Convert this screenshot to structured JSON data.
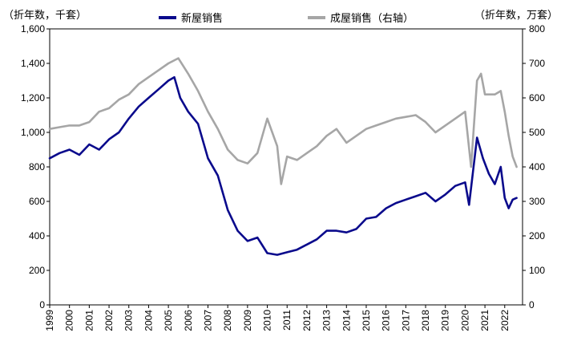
{
  "chart_data": {
    "type": "line",
    "left_axis_label": "（折年数，千套）",
    "right_axis_label": "（折年数，万套）",
    "legend": [
      {
        "name": "新屋销售",
        "color": "#0a0a8c"
      },
      {
        "name": "成屋销售（右轴）",
        "color": "#a6a6a6"
      }
    ],
    "x_ticks": [
      "1999",
      "2000",
      "2001",
      "2002",
      "2003",
      "2004",
      "2005",
      "2006",
      "2007",
      "2008",
      "2009",
      "2010",
      "2011",
      "2012",
      "2013",
      "2014",
      "2015",
      "2016",
      "2017",
      "2018",
      "2019",
      "2020",
      "2021",
      "2022"
    ],
    "y_left": {
      "min": 0,
      "max": 1600,
      "ticks": [
        "0",
        "200",
        "400",
        "600",
        "800",
        "1,000",
        "1,200",
        "1,400",
        "1,600"
      ]
    },
    "y_right": {
      "min": 0,
      "max": 800,
      "ticks": [
        "0",
        "100",
        "200",
        "300",
        "400",
        "500",
        "600",
        "700",
        "800"
      ]
    },
    "series": [
      {
        "name": "新屋销售",
        "axis": "left",
        "color": "#0a0a8c",
        "points": [
          [
            1999.0,
            850
          ],
          [
            1999.5,
            880
          ],
          [
            2000.0,
            900
          ],
          [
            2000.5,
            870
          ],
          [
            2001.0,
            930
          ],
          [
            2001.5,
            900
          ],
          [
            2002.0,
            960
          ],
          [
            2002.5,
            1000
          ],
          [
            2003.0,
            1080
          ],
          [
            2003.5,
            1150
          ],
          [
            2004.0,
            1200
          ],
          [
            2004.5,
            1250
          ],
          [
            2005.0,
            1300
          ],
          [
            2005.3,
            1320
          ],
          [
            2005.6,
            1200
          ],
          [
            2006.0,
            1120
          ],
          [
            2006.5,
            1050
          ],
          [
            2007.0,
            850
          ],
          [
            2007.5,
            750
          ],
          [
            2008.0,
            550
          ],
          [
            2008.5,
            430
          ],
          [
            2009.0,
            370
          ],
          [
            2009.5,
            390
          ],
          [
            2010.0,
            300
          ],
          [
            2010.5,
            290
          ],
          [
            2011.0,
            305
          ],
          [
            2011.5,
            320
          ],
          [
            2012.0,
            350
          ],
          [
            2012.5,
            380
          ],
          [
            2013.0,
            430
          ],
          [
            2013.5,
            430
          ],
          [
            2014.0,
            420
          ],
          [
            2014.5,
            440
          ],
          [
            2015.0,
            500
          ],
          [
            2015.5,
            510
          ],
          [
            2016.0,
            560
          ],
          [
            2016.5,
            590
          ],
          [
            2017.0,
            610
          ],
          [
            2017.5,
            630
          ],
          [
            2018.0,
            650
          ],
          [
            2018.5,
            600
          ],
          [
            2019.0,
            640
          ],
          [
            2019.5,
            690
          ],
          [
            2020.0,
            710
          ],
          [
            2020.2,
            580
          ],
          [
            2020.6,
            970
          ],
          [
            2020.9,
            850
          ],
          [
            2021.2,
            760
          ],
          [
            2021.5,
            700
          ],
          [
            2021.8,
            800
          ],
          [
            2022.0,
            620
          ],
          [
            2022.2,
            560
          ],
          [
            2022.4,
            610
          ],
          [
            2022.6,
            620
          ]
        ]
      },
      {
        "name": "成屋销售（右轴）",
        "axis": "right",
        "color": "#a6a6a6",
        "points": [
          [
            1999.0,
            510
          ],
          [
            1999.5,
            515
          ],
          [
            2000.0,
            520
          ],
          [
            2000.5,
            520
          ],
          [
            2001.0,
            530
          ],
          [
            2001.5,
            560
          ],
          [
            2002.0,
            570
          ],
          [
            2002.5,
            595
          ],
          [
            2003.0,
            610
          ],
          [
            2003.5,
            640
          ],
          [
            2004.0,
            660
          ],
          [
            2004.5,
            680
          ],
          [
            2005.0,
            700
          ],
          [
            2005.5,
            715
          ],
          [
            2006.0,
            670
          ],
          [
            2006.5,
            620
          ],
          [
            2007.0,
            560
          ],
          [
            2007.5,
            510
          ],
          [
            2008.0,
            450
          ],
          [
            2008.5,
            420
          ],
          [
            2009.0,
            410
          ],
          [
            2009.5,
            440
          ],
          [
            2010.0,
            540
          ],
          [
            2010.5,
            460
          ],
          [
            2010.7,
            350
          ],
          [
            2011.0,
            430
          ],
          [
            2011.5,
            420
          ],
          [
            2012.0,
            440
          ],
          [
            2012.5,
            460
          ],
          [
            2013.0,
            490
          ],
          [
            2013.5,
            510
          ],
          [
            2014.0,
            470
          ],
          [
            2014.5,
            490
          ],
          [
            2015.0,
            510
          ],
          [
            2015.5,
            520
          ],
          [
            2016.0,
            530
          ],
          [
            2016.5,
            540
          ],
          [
            2017.0,
            545
          ],
          [
            2017.5,
            550
          ],
          [
            2018.0,
            530
          ],
          [
            2018.5,
            500
          ],
          [
            2019.0,
            520
          ],
          [
            2019.5,
            540
          ],
          [
            2020.0,
            560
          ],
          [
            2020.3,
            400
          ],
          [
            2020.6,
            650
          ],
          [
            2020.8,
            670
          ],
          [
            2021.0,
            610
          ],
          [
            2021.5,
            610
          ],
          [
            2021.8,
            620
          ],
          [
            2022.0,
            560
          ],
          [
            2022.2,
            490
          ],
          [
            2022.4,
            430
          ],
          [
            2022.6,
            400
          ]
        ]
      }
    ]
  }
}
